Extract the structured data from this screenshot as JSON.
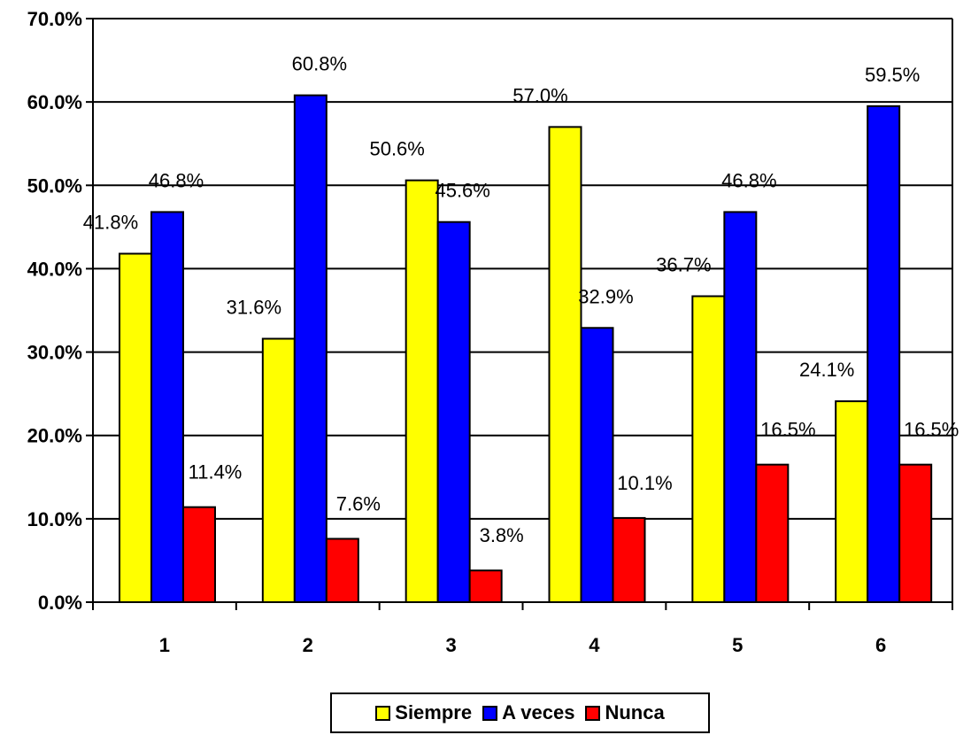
{
  "chart_data": {
    "type": "bar",
    "categories": [
      "1",
      "2",
      "3",
      "4",
      "5",
      "6"
    ],
    "series": [
      {
        "name": "Siempre",
        "color": "#ffff00",
        "values": [
          41.8,
          31.6,
          50.6,
          57.0,
          36.7,
          24.1
        ],
        "labels": [
          "41.8%",
          "31.6%",
          "50.6%",
          "57.0%",
          "36.7%",
          "24.1%"
        ]
      },
      {
        "name": "A veces",
        "color": "#0000ff",
        "values": [
          46.8,
          60.8,
          45.6,
          32.9,
          46.8,
          59.5
        ],
        "labels": [
          "46.8%",
          "60.8%",
          "45.6%",
          "32.9%",
          "46.8%",
          "59.5%"
        ]
      },
      {
        "name": "Nunca",
        "color": "#ff0000",
        "values": [
          11.4,
          7.6,
          3.8,
          10.1,
          16.5,
          16.5
        ],
        "labels": [
          "11.4%",
          "7.6%",
          "3.8%",
          "10.1%",
          "16.5%",
          "16.5%"
        ]
      }
    ],
    "ylim": [
      0,
      70
    ],
    "yticks": [
      0,
      10,
      20,
      30,
      40,
      50,
      60,
      70
    ],
    "ytick_labels": [
      "0.0%",
      "10.0%",
      "20.0%",
      "30.0%",
      "40.0%",
      "50.0%",
      "60.0%",
      "70.0%"
    ],
    "grid": true,
    "legend": "bottom",
    "title": "",
    "xlabel": "",
    "ylabel": ""
  }
}
